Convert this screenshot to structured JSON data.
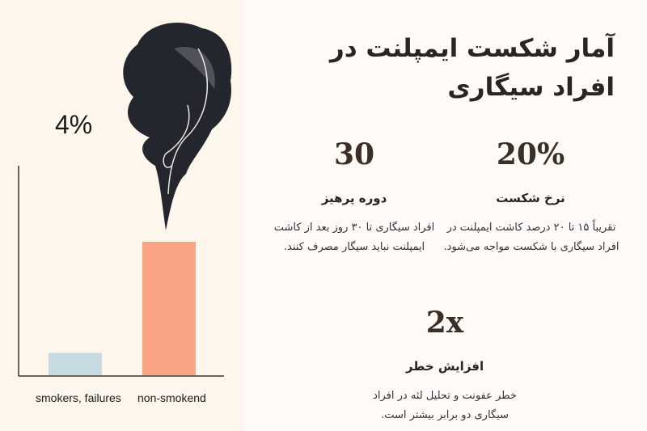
{
  "title": "آمار شکست ایمپلنت در افراد سیگاری",
  "chart_data": {
    "type": "bar",
    "categories": [
      "smokers, failures",
      "non-smokend"
    ],
    "values": [
      4,
      24
    ],
    "annotation": "4%",
    "colors": [
      "#c9dbe2",
      "#f9a585"
    ],
    "grid": false
  },
  "stats": [
    {
      "value": "20%",
      "label": "نرخ شکست",
      "desc": "تقریباً ۱۵ تا ۲۰ درصد کاشت ایمپلنت در افراد سیگاری با شکست مواجه می‌شود."
    },
    {
      "value": "30",
      "label": "دوره پرهیز",
      "desc": "افراد سیگاری تا ۳۰ روز بعد از کاشت ایمپلنت نباید سیگار مصرف کنند."
    },
    {
      "value": "2x",
      "label": "افزایش خطر",
      "desc": "خطر عفونت و تحلیل لثه در افراد سیگاری دو برابر بیشتر است."
    }
  ]
}
